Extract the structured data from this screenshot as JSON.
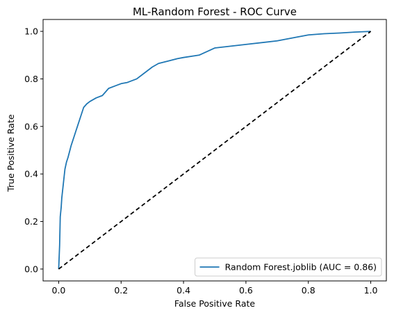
{
  "chart_data": {
    "type": "line",
    "title": "ML-Random Forest - ROC Curve",
    "xlabel": "False Positive Rate",
    "ylabel": "True Positive Rate",
    "xlim": [
      -0.05,
      1.05
    ],
    "ylim": [
      -0.05,
      1.05
    ],
    "xticks": [
      0.0,
      0.2,
      0.4,
      0.6,
      0.8,
      1.0
    ],
    "yticks": [
      0.0,
      0.2,
      0.4,
      0.6,
      0.8,
      1.0
    ],
    "xtick_labels": [
      "0.0",
      "0.2",
      "0.4",
      "0.6",
      "0.8",
      "1.0"
    ],
    "ytick_labels": [
      "0.0",
      "0.2",
      "0.4",
      "0.6",
      "0.8",
      "1.0"
    ],
    "grid": false,
    "legend_position": "lower-right",
    "series": [
      {
        "name": "Random Forest.joblib (AUC = 0.86)",
        "color": "#1f77b4",
        "style": "solid",
        "x": [
          0.0,
          0.003,
          0.005,
          0.008,
          0.01,
          0.015,
          0.02,
          0.025,
          0.03,
          0.04,
          0.05,
          0.055,
          0.06,
          0.07,
          0.08,
          0.09,
          0.1,
          0.12,
          0.14,
          0.16,
          0.18,
          0.2,
          0.22,
          0.25,
          0.27,
          0.3,
          0.32,
          0.35,
          0.38,
          0.4,
          0.45,
          0.5,
          0.6,
          0.7,
          0.76,
          0.8,
          0.85,
          0.9,
          0.95,
          1.0
        ],
        "y": [
          0.0,
          0.1,
          0.22,
          0.26,
          0.3,
          0.36,
          0.42,
          0.45,
          0.47,
          0.52,
          0.56,
          0.58,
          0.6,
          0.64,
          0.68,
          0.695,
          0.705,
          0.72,
          0.73,
          0.76,
          0.77,
          0.78,
          0.785,
          0.8,
          0.82,
          0.85,
          0.865,
          0.875,
          0.885,
          0.89,
          0.9,
          0.93,
          0.945,
          0.96,
          0.975,
          0.985,
          0.99,
          0.993,
          0.997,
          1.0
        ]
      },
      {
        "name": "",
        "color": "#000000",
        "style": "dashed",
        "x": [
          0.0,
          1.0
        ],
        "y": [
          0.0,
          1.0
        ]
      }
    ]
  }
}
